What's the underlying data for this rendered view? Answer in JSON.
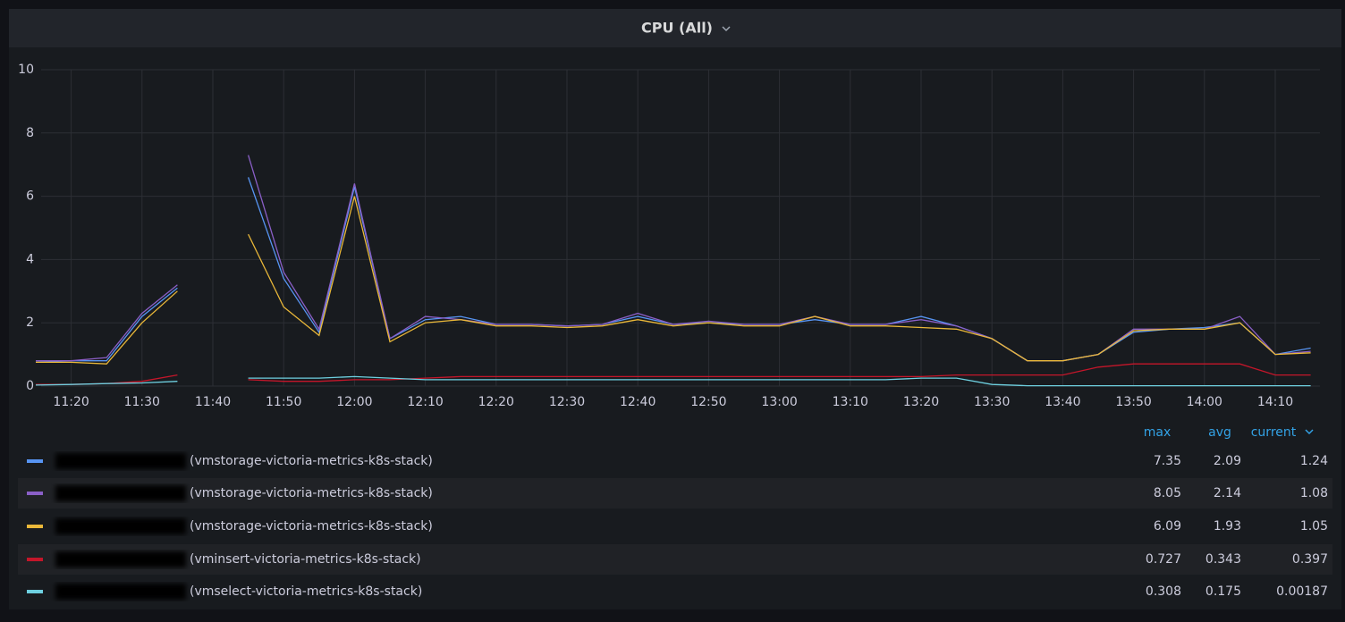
{
  "chart_data": {
    "type": "line",
    "title": "CPU (All)",
    "categories": [
      null,
      "11:20",
      null,
      "11:30",
      null,
      "11:40",
      null,
      "11:50",
      null,
      "12:00",
      null,
      "12:10",
      null,
      "12:20",
      null,
      "12:30",
      null,
      "12:40",
      null,
      "12:50",
      null,
      "13:00",
      null,
      "13:10",
      null,
      "13:20",
      null,
      "13:30",
      null,
      "13:40",
      null,
      "13:50",
      null,
      "14:00",
      null,
      "14:10",
      null
    ],
    "ylim": [
      0,
      10
    ],
    "yticks": [
      0,
      2,
      4,
      6,
      8,
      10
    ],
    "grid": true,
    "legend_columns": [
      "max",
      "avg",
      "current"
    ],
    "series": [
      {
        "name": "(vmstorage-victoria-metrics-k8s-stack)",
        "color": "#5794f2",
        "stats": [
          7.35,
          2.09,
          1.24
        ],
        "values": [
          0.75,
          0.8,
          0.8,
          2.2,
          3.1,
          null,
          6.6,
          3.4,
          1.7,
          6.3,
          1.5,
          2.1,
          2.2,
          1.95,
          1.95,
          1.9,
          1.95,
          2.2,
          1.95,
          2.0,
          1.95,
          1.95,
          2.1,
          1.95,
          1.95,
          2.2,
          1.9,
          1.5,
          0.8,
          0.8,
          1.0,
          1.7,
          1.8,
          1.85,
          2.0,
          1.0,
          1.2
        ]
      },
      {
        "name": "(vmstorage-victoria-metrics-k8s-stack)",
        "color": "#8a5fc7",
        "stats": [
          8.05,
          2.14,
          1.08
        ],
        "values": [
          0.8,
          0.8,
          0.9,
          2.3,
          3.2,
          null,
          7.3,
          3.6,
          1.8,
          6.4,
          1.5,
          2.2,
          2.1,
          1.95,
          1.95,
          1.9,
          1.95,
          2.3,
          1.95,
          2.05,
          1.95,
          1.95,
          2.2,
          1.95,
          1.95,
          2.1,
          1.9,
          1.5,
          0.8,
          0.8,
          1.0,
          1.8,
          1.8,
          1.8,
          2.2,
          1.0,
          1.1
        ]
      },
      {
        "name": "(vmstorage-victoria-metrics-k8s-stack)",
        "color": "#eab839",
        "stats": [
          6.09,
          1.93,
          1.05
        ],
        "values": [
          0.75,
          0.75,
          0.7,
          2.0,
          3.0,
          null,
          4.8,
          2.5,
          1.6,
          6.0,
          1.4,
          2.0,
          2.1,
          1.9,
          1.9,
          1.85,
          1.9,
          2.1,
          1.9,
          2.0,
          1.9,
          1.9,
          2.2,
          1.9,
          1.9,
          1.85,
          1.8,
          1.5,
          0.8,
          0.8,
          1.0,
          1.75,
          1.8,
          1.8,
          2.0,
          1.0,
          1.05
        ]
      },
      {
        "name": "(vminsert-victoria-metrics-k8s-stack)",
        "color": "#c4162a",
        "stats": [
          0.727,
          0.343,
          0.397
        ],
        "values": [
          0.05,
          0.05,
          0.08,
          0.15,
          0.35,
          null,
          0.2,
          0.15,
          0.15,
          0.2,
          0.2,
          0.25,
          0.3,
          0.3,
          0.3,
          0.3,
          0.3,
          0.3,
          0.3,
          0.3,
          0.3,
          0.3,
          0.3,
          0.3,
          0.3,
          0.3,
          0.35,
          0.35,
          0.35,
          0.35,
          0.6,
          0.7,
          0.7,
          0.7,
          0.7,
          0.35,
          0.35
        ]
      },
      {
        "name": "(vmselect-victoria-metrics-k8s-stack)",
        "color": "#6ed0e0",
        "stats": [
          0.308,
          0.175,
          0.00187
        ],
        "values": [
          0.03,
          0.05,
          0.08,
          0.1,
          0.15,
          null,
          0.25,
          0.25,
          0.25,
          0.3,
          0.25,
          0.2,
          0.2,
          0.2,
          0.2,
          0.2,
          0.2,
          0.2,
          0.2,
          0.2,
          0.2,
          0.2,
          0.2,
          0.2,
          0.2,
          0.25,
          0.25,
          0.05,
          0.01,
          0.01,
          0.01,
          0.01,
          0.01,
          0.01,
          0.01,
          0.01,
          0.01
        ]
      }
    ]
  }
}
